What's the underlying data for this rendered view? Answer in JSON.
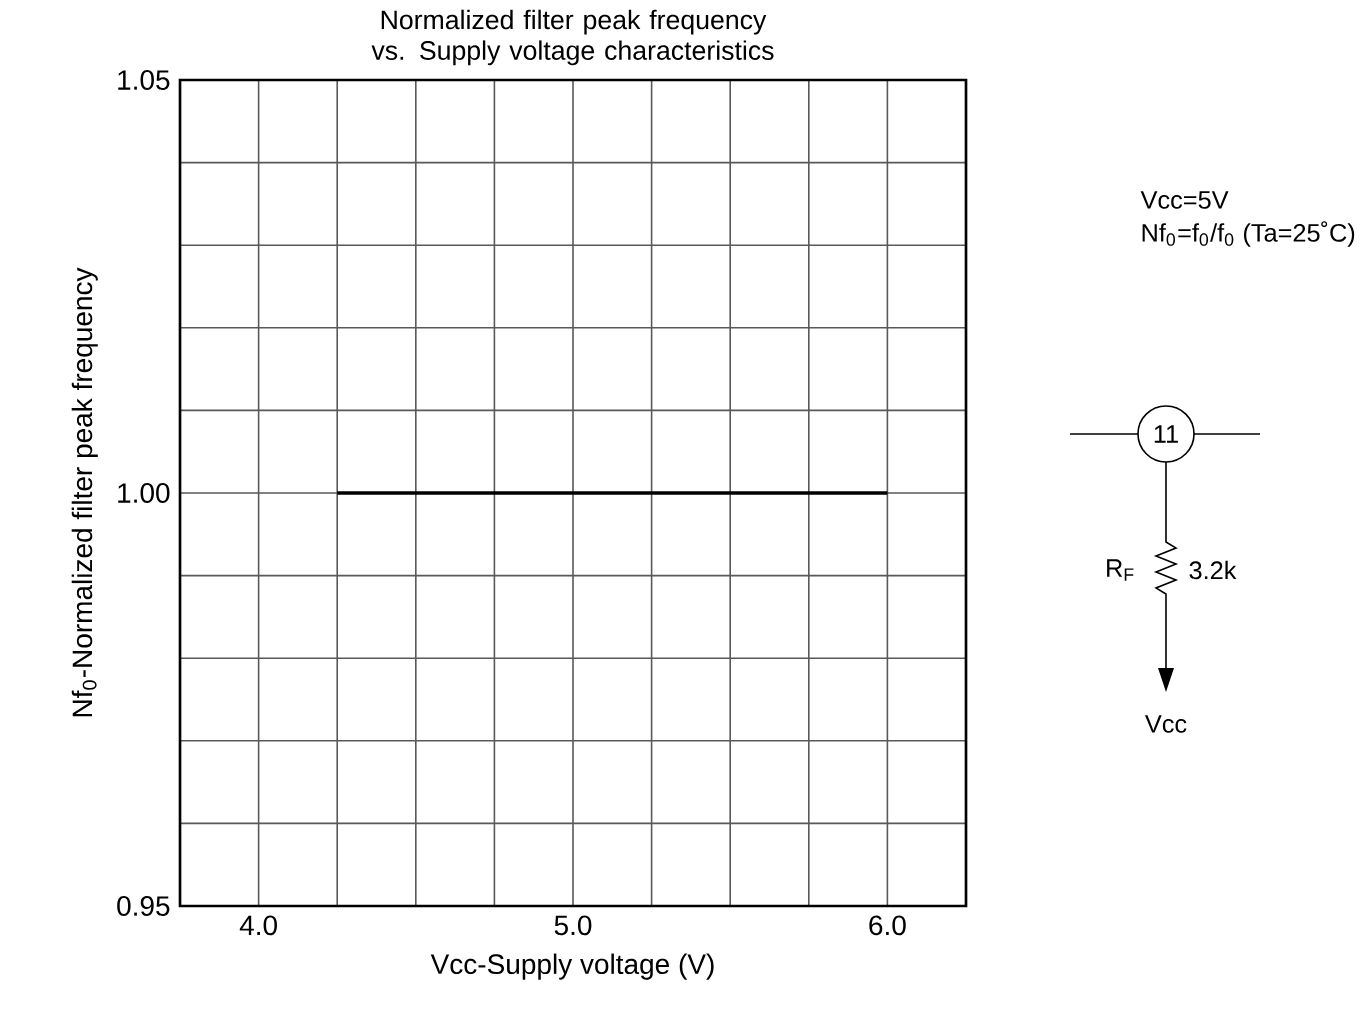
{
  "chart_data": {
    "type": "line",
    "title": "Normalized filter peak frequency vs. Supply voltage characteristics",
    "xlabel": "Vcc-Supply voltage (V)",
    "ylabel": "Nf$_{0}$-Normalized filter peak frequency",
    "xlim": [
      3.75,
      6.25
    ],
    "xticks": [
      {
        "value": 4.0,
        "label": "4.0"
      },
      {
        "value": 5.0,
        "label": "5.0"
      },
      {
        "value": 6.0,
        "label": "6.0"
      }
    ],
    "ylim": [
      0.95,
      1.05
    ],
    "yticks": [
      0.95,
      {
        "value": 1.0,
        "label": "1.00"
      },
      1.05
    ],
    "grid": true,
    "series": [
      {
        "color": "#000000",
        "x": [
          4.25,
          6.0
        ],
        "values": [
          1.0,
          1.0
        ]
      }
    ],
    "annotations": [
      "Vcc=5V",
      "Nf$_{0}$=f$_{0}$/f$_{0}$ (Ta=25˚C)",
      "11",
      "R$_{F}$",
      "3.2k",
      "Vcc"
    ]
  }
}
